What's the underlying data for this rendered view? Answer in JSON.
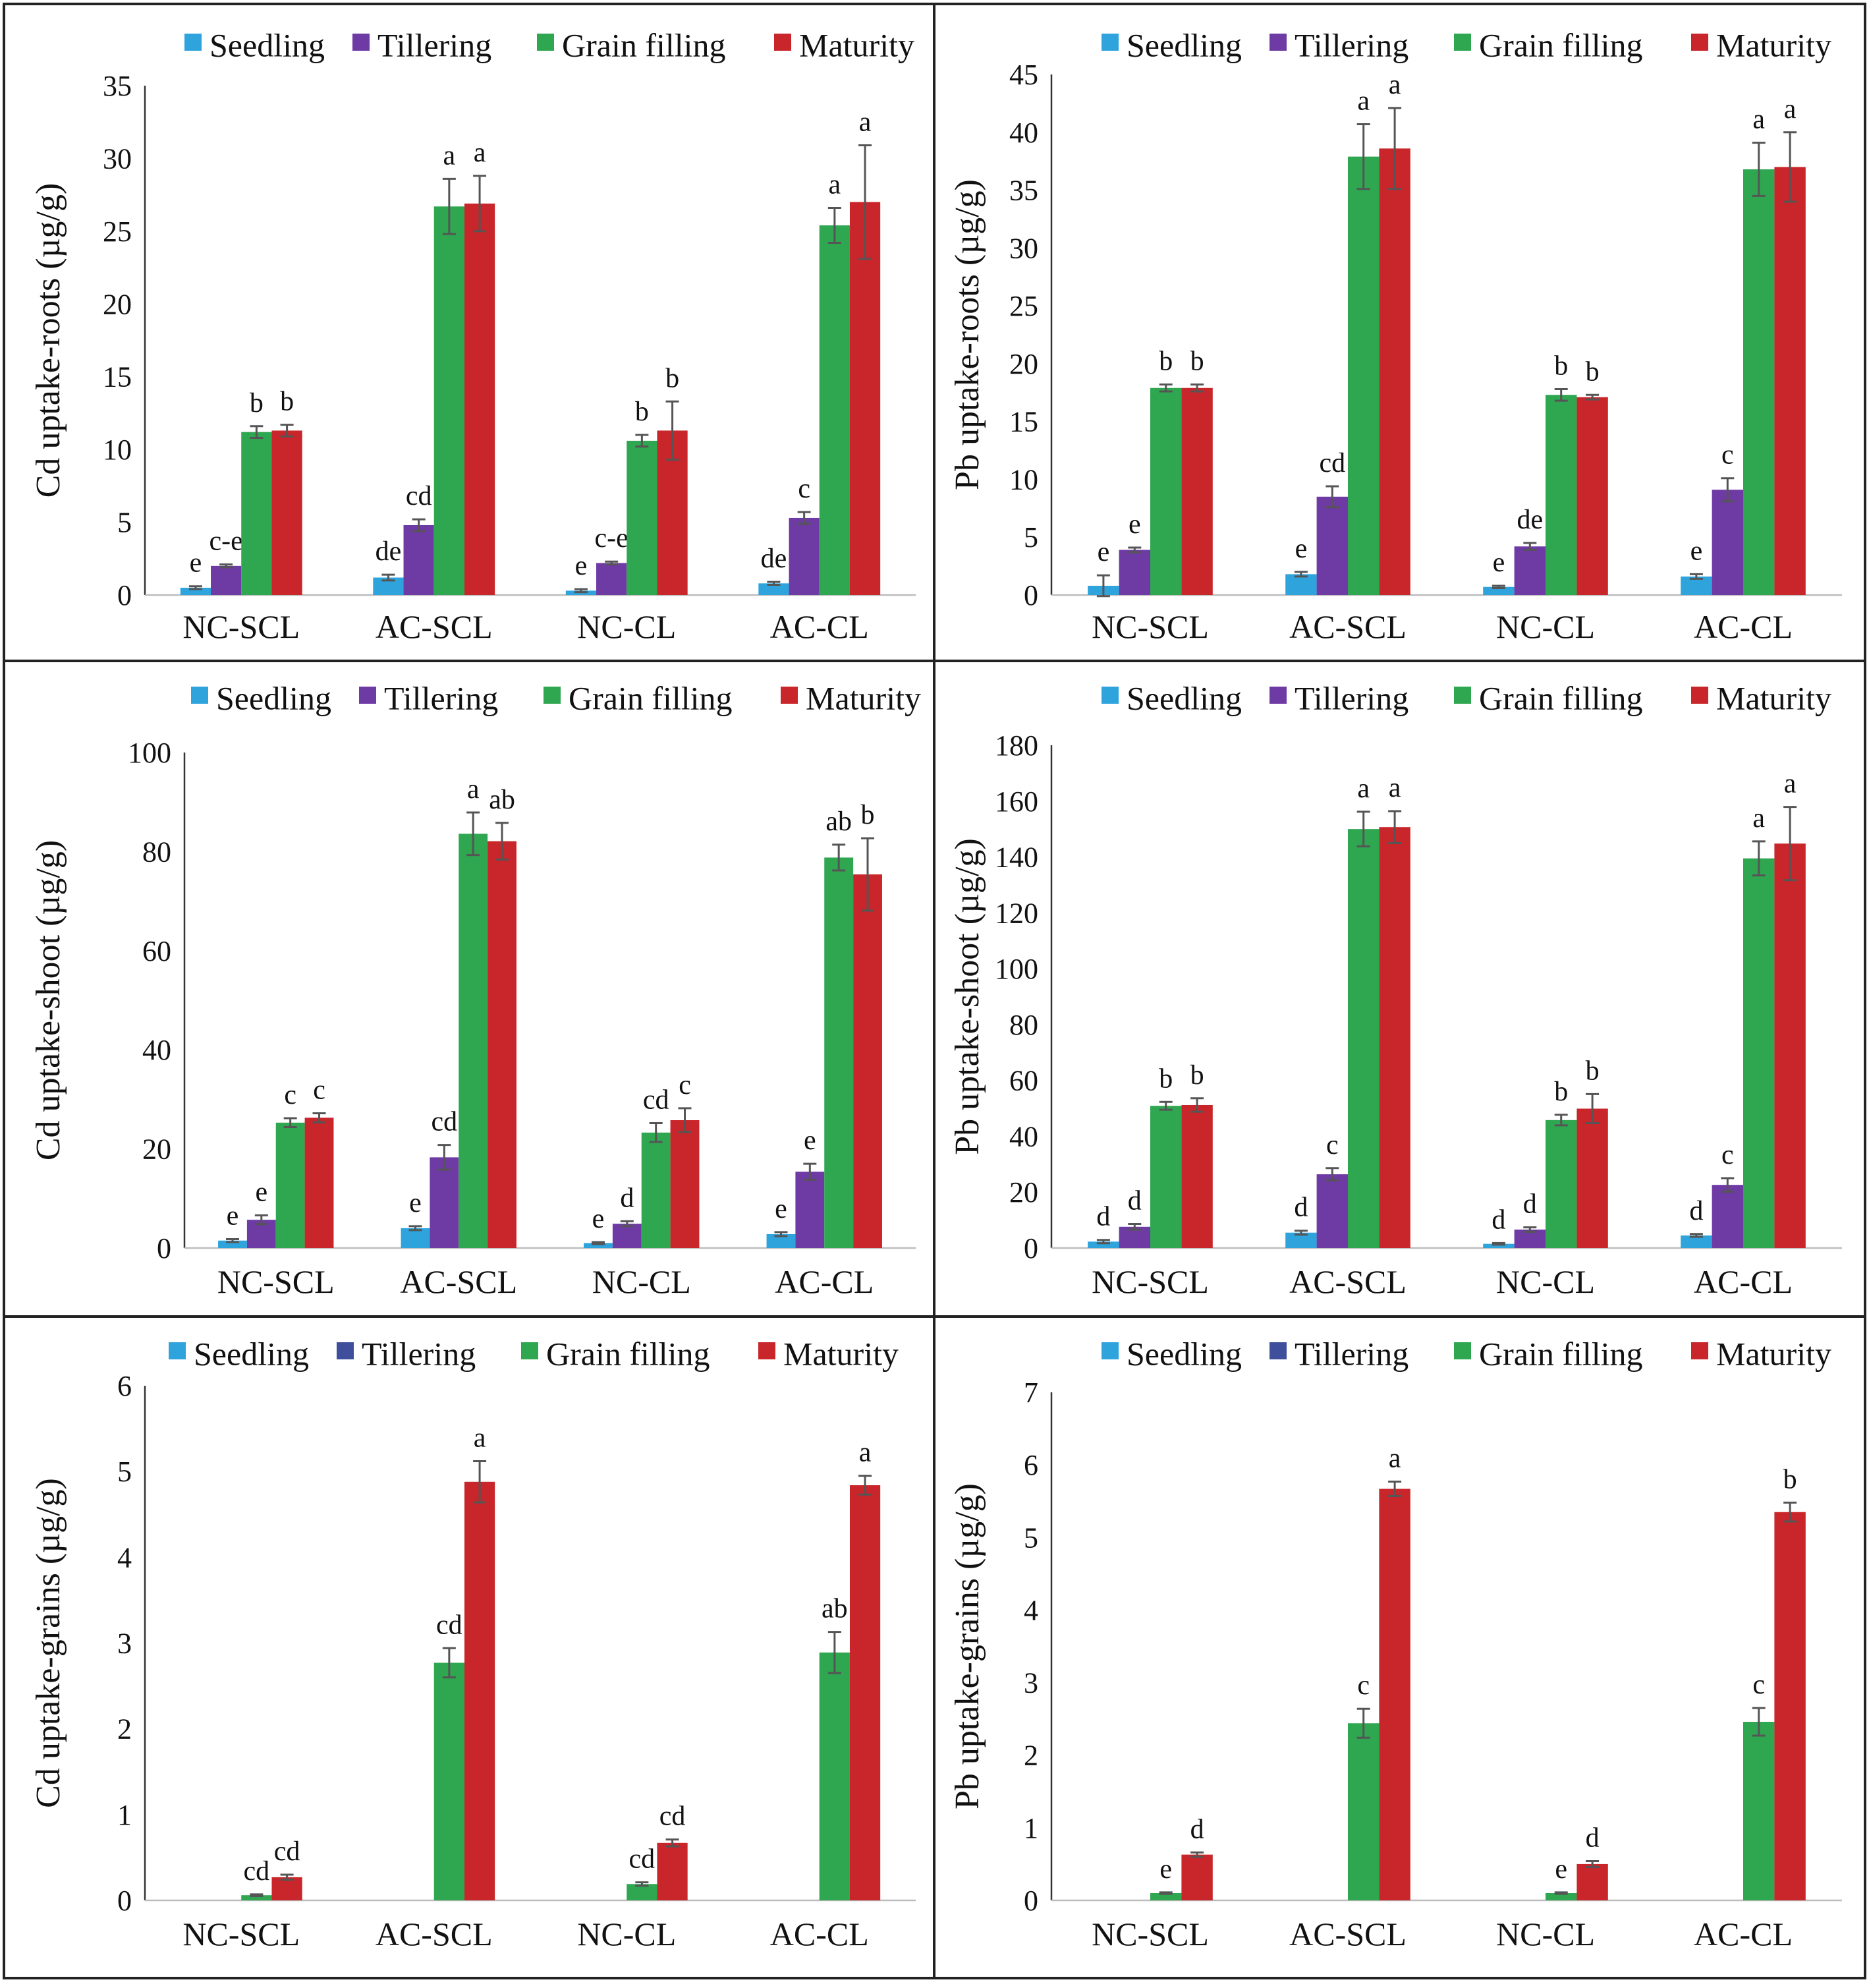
{
  "legend": {
    "series": [
      "Seedling",
      "Tillering",
      "Grain filling",
      "Maturity"
    ]
  },
  "colors": {
    "Seedling": "#2ea3dc",
    "Tillering": "#6e3aa4",
    "Tillering_alt": "#3f4f9c",
    "Grain filling": "#2fa650",
    "Maturity": "#c8262a",
    "error_bar": "#555555",
    "frame": "#222222"
  },
  "chart_data": [
    {
      "id": "cd-roots",
      "type": "bar",
      "title": "",
      "ylabel": "Cd uptake-roots (µg/g)",
      "xlabel": "",
      "categories": [
        "NC-SCL",
        "AC-SCL",
        "NC-CL",
        "AC-CL"
      ],
      "ylim": [
        0,
        35
      ],
      "yticks": [
        0,
        5,
        10,
        15,
        20,
        25,
        30,
        35
      ],
      "legend_position": "top",
      "series": [
        {
          "name": "Seedling",
          "values": [
            0.5,
            1.2,
            0.3,
            0.8
          ],
          "errors": [
            0.1,
            0.2,
            0.1,
            0.1
          ],
          "labels": [
            "e",
            "de",
            "e",
            "de"
          ]
        },
        {
          "name": "Tillering",
          "values": [
            2.0,
            4.8,
            2.2,
            5.3
          ],
          "errors": [
            0.1,
            0.4,
            0.1,
            0.4
          ],
          "labels": [
            "c-e",
            "cd",
            "c-e",
            "c"
          ]
        },
        {
          "name": "Grain filling",
          "values": [
            11.2,
            26.7,
            10.6,
            25.4
          ],
          "errors": [
            0.4,
            1.9,
            0.4,
            1.2
          ],
          "labels": [
            "b",
            "a",
            "b",
            "a"
          ]
        },
        {
          "name": "Maturity",
          "values": [
            11.3,
            26.9,
            11.3,
            27.0
          ],
          "errors": [
            0.4,
            1.9,
            2.0,
            3.9
          ],
          "labels": [
            "b",
            "a",
            "b",
            "a"
          ]
        }
      ]
    },
    {
      "id": "pb-roots",
      "type": "bar",
      "title": "",
      "ylabel": "Pb uptake-roots (µg/g)",
      "xlabel": "",
      "categories": [
        "NC-SCL",
        "AC-SCL",
        "NC-CL",
        "AC-CL"
      ],
      "ylim": [
        0,
        45
      ],
      "yticks": [
        0,
        5,
        10,
        15,
        20,
        25,
        30,
        35,
        40,
        45
      ],
      "legend_position": "top",
      "series": [
        {
          "name": "Seedling",
          "values": [
            0.8,
            1.8,
            0.7,
            1.6
          ],
          "errors": [
            0.9,
            0.2,
            0.1,
            0.2
          ],
          "labels": [
            "e",
            "e",
            "e",
            "e"
          ]
        },
        {
          "name": "Tillering",
          "values": [
            3.9,
            8.5,
            4.2,
            9.1
          ],
          "errors": [
            0.2,
            0.9,
            0.3,
            1.0
          ],
          "labels": [
            "e",
            "cd",
            "de",
            "c"
          ]
        },
        {
          "name": "Grain filling",
          "values": [
            17.9,
            37.9,
            17.3,
            36.8
          ],
          "errors": [
            0.3,
            2.8,
            0.5,
            2.3
          ],
          "labels": [
            "b",
            "a",
            "b",
            "a"
          ]
        },
        {
          "name": "Maturity",
          "values": [
            17.9,
            38.6,
            17.1,
            37.0
          ],
          "errors": [
            0.3,
            3.5,
            0.2,
            3.0
          ],
          "labels": [
            "b",
            "a",
            "b",
            "a"
          ]
        }
      ]
    },
    {
      "id": "cd-shoot",
      "type": "bar",
      "title": "",
      "ylabel": "Cd uptake-shoot (µg/g)",
      "xlabel": "",
      "categories": [
        "NC-SCL",
        "AC-SCL",
        "NC-CL",
        "AC-CL"
      ],
      "ylim": [
        0,
        100
      ],
      "yticks": [
        0,
        20,
        40,
        60,
        80,
        100
      ],
      "legend_position": "top",
      "series": [
        {
          "name": "Seedling",
          "values": [
            1.5,
            4.0,
            1.0,
            2.8
          ],
          "errors": [
            0.3,
            0.4,
            0.2,
            0.4
          ],
          "labels": [
            "e",
            "e",
            "e",
            "e"
          ]
        },
        {
          "name": "Tillering",
          "values": [
            5.7,
            18.3,
            4.9,
            15.4
          ],
          "errors": [
            0.9,
            2.5,
            0.5,
            1.6
          ],
          "labels": [
            "e",
            "cd",
            "d",
            "e"
          ]
        },
        {
          "name": "Grain filling",
          "values": [
            25.3,
            83.6,
            23.3,
            78.8
          ],
          "errors": [
            0.9,
            4.3,
            1.9,
            2.6
          ],
          "labels": [
            "c",
            "a",
            "cd",
            "ab"
          ]
        },
        {
          "name": "Maturity",
          "values": [
            26.3,
            82.1,
            25.8,
            75.4
          ],
          "errors": [
            0.9,
            3.7,
            2.4,
            7.3
          ],
          "labels": [
            "c",
            "ab",
            "c",
            "b"
          ]
        }
      ]
    },
    {
      "id": "pb-shoot",
      "type": "bar",
      "title": "",
      "ylabel": "Pb uptake-shoot (µg/g)",
      "xlabel": "",
      "categories": [
        "NC-SCL",
        "AC-SCL",
        "NC-CL",
        "AC-CL"
      ],
      "ylim": [
        0,
        180
      ],
      "yticks": [
        0,
        20,
        40,
        60,
        80,
        100,
        120,
        140,
        160,
        180
      ],
      "legend_position": "top",
      "series": [
        {
          "name": "Seedling",
          "values": [
            2.3,
            5.5,
            1.5,
            4.5
          ],
          "errors": [
            0.6,
            0.7,
            0.3,
            0.5
          ],
          "labels": [
            "d",
            "d",
            "d",
            "d"
          ]
        },
        {
          "name": "Tillering",
          "values": [
            7.6,
            26.4,
            6.6,
            22.6
          ],
          "errors": [
            1.0,
            2.2,
            0.8,
            2.4
          ],
          "labels": [
            "d",
            "c",
            "d",
            "c"
          ]
        },
        {
          "name": "Grain filling",
          "values": [
            50.9,
            150.0,
            45.8,
            139.5
          ],
          "errors": [
            1.4,
            6.2,
            1.9,
            6.1
          ],
          "labels": [
            "b",
            "a",
            "b",
            "a"
          ]
        },
        {
          "name": "Maturity",
          "values": [
            51.2,
            150.7,
            49.9,
            144.8
          ],
          "errors": [
            2.4,
            5.7,
            5.2,
            13.1
          ],
          "labels": [
            "b",
            "a",
            "b",
            "a"
          ]
        }
      ]
    },
    {
      "id": "cd-grains",
      "type": "bar",
      "title": "",
      "ylabel": "Cd uptake-grains (µg/g)",
      "xlabel": "",
      "categories": [
        "NC-SCL",
        "AC-SCL",
        "NC-CL",
        "AC-CL"
      ],
      "ylim": [
        0,
        6
      ],
      "yticks": [
        0,
        1,
        2,
        3,
        4,
        5,
        6
      ],
      "legend_position": "top",
      "series": [
        {
          "name": "Seedling",
          "values": [
            0,
            0,
            0,
            0
          ],
          "errors": [
            0,
            0,
            0,
            0
          ],
          "labels": [
            "",
            "",
            "",
            ""
          ]
        },
        {
          "name": "Tillering",
          "values": [
            0,
            0,
            0,
            0
          ],
          "errors": [
            0,
            0,
            0,
            0
          ],
          "labels": [
            "",
            "",
            "",
            ""
          ]
        },
        {
          "name": "Grain filling",
          "values": [
            0.06,
            2.77,
            0.19,
            2.89
          ],
          "errors": [
            0.01,
            0.17,
            0.02,
            0.24
          ],
          "labels": [
            "cd",
            "cd",
            "cd",
            "ab"
          ]
        },
        {
          "name": "Maturity",
          "values": [
            0.27,
            4.88,
            0.67,
            4.84
          ],
          "errors": [
            0.03,
            0.24,
            0.04,
            0.11
          ],
          "labels": [
            "cd",
            "a",
            "cd",
            "a"
          ]
        }
      ]
    },
    {
      "id": "pb-grains",
      "type": "bar",
      "title": "",
      "ylabel": "Pb uptake-grains (µg/g)",
      "xlabel": "",
      "categories": [
        "NC-SCL",
        "AC-SCL",
        "NC-CL",
        "AC-CL"
      ],
      "ylim": [
        0,
        7
      ],
      "yticks": [
        0,
        1,
        2,
        3,
        4,
        5,
        6,
        7
      ],
      "legend_position": "top",
      "series": [
        {
          "name": "Seedling",
          "values": [
            0,
            0,
            0,
            0
          ],
          "errors": [
            0,
            0,
            0,
            0
          ],
          "labels": [
            "",
            "",
            "",
            ""
          ]
        },
        {
          "name": "Tillering",
          "values": [
            0,
            0,
            0,
            0
          ],
          "errors": [
            0,
            0,
            0,
            0
          ],
          "labels": [
            "",
            "",
            "",
            ""
          ]
        },
        {
          "name": "Grain filling",
          "values": [
            0.1,
            2.44,
            0.1,
            2.46
          ],
          "errors": [
            0.01,
            0.2,
            0.01,
            0.19
          ],
          "labels": [
            "e",
            "c",
            "e",
            "c"
          ]
        },
        {
          "name": "Maturity",
          "values": [
            0.63,
            5.67,
            0.5,
            5.35
          ],
          "errors": [
            0.03,
            0.1,
            0.04,
            0.13
          ],
          "labels": [
            "d",
            "a",
            "d",
            "b"
          ]
        }
      ]
    }
  ]
}
